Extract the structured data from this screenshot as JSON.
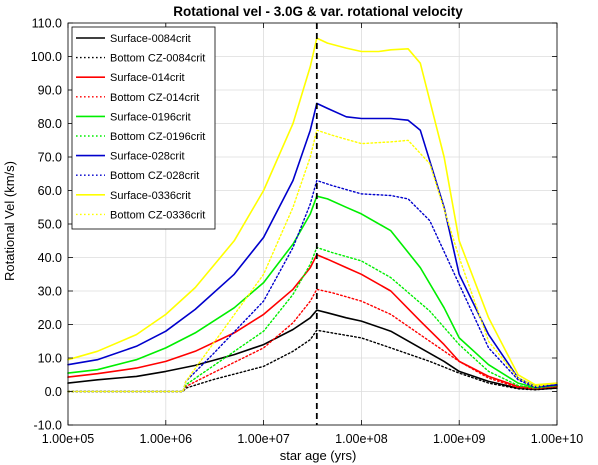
{
  "chart_data": {
    "type": "line",
    "title": "Rotational vel - 3.0G & var. rotational velocity",
    "xlabel": "star age (yrs)",
    "ylabel": "Rotational Vel (km/s)",
    "xscale": "log",
    "xlim": [
      100000,
      10000000000
    ],
    "ylim": [
      -10,
      110
    ],
    "grid": true,
    "legend_position": "top-left",
    "x_tick_labels": [
      "1.00e+05",
      "1.00e+06",
      "1.00e+07",
      "1.00e+08",
      "1.00e+09",
      "1.00e+10"
    ],
    "y_tick_labels": [
      "-10.0",
      "0.0",
      "10.0",
      "20.0",
      "30.0",
      "40.0",
      "50.0",
      "60.0",
      "70.0",
      "80.0",
      "90.0",
      "100.0",
      "110.0"
    ],
    "annotations": [
      {
        "type": "vertical-dashed-line",
        "x": 35000000,
        "color": "#000000"
      }
    ],
    "series": [
      {
        "name": "Surface-0084crit",
        "color": "#000000",
        "style": "solid",
        "x": [
          100000,
          200000,
          500000,
          1000000,
          2000000,
          5000000,
          10000000,
          20000000,
          30000000,
          35000000,
          45000000,
          70000000,
          100000000,
          200000000,
          400000000,
          700000000,
          1000000000,
          2000000000,
          4000000000,
          6000000000,
          10000000000
        ],
        "y": [
          2.5,
          3.5,
          4.5,
          6,
          7.8,
          11,
          14,
          18.5,
          22,
          24.3,
          23.5,
          22,
          21,
          18,
          13,
          9,
          6,
          3,
          1,
          0.6,
          1.0
        ]
      },
      {
        "name": "Bottom CZ-0084crit",
        "color": "#000000",
        "style": "dotted",
        "x": [
          100000,
          1500000,
          1600000,
          3000000,
          10000000,
          20000000,
          30000000,
          35000000,
          50000000,
          100000000,
          200000000,
          500000000,
          1000000000,
          2000000000,
          4000000000,
          6000000000,
          10000000000
        ],
        "y": [
          0,
          0,
          1,
          3.5,
          7.5,
          12,
          15.5,
          18.3,
          17.5,
          16,
          13,
          9,
          5.5,
          2.5,
          0.8,
          0.5,
          1.0
        ]
      },
      {
        "name": "Surface-014crit",
        "color": "#ff0000",
        "style": "solid",
        "x": [
          100000,
          200000,
          500000,
          1000000,
          2000000,
          5000000,
          10000000,
          20000000,
          30000000,
          35000000,
          45000000,
          70000000,
          100000000,
          200000000,
          400000000,
          700000000,
          1000000000,
          2000000000,
          4000000000,
          6000000000,
          10000000000
        ],
        "y": [
          4.3,
          5.3,
          7,
          9,
          12,
          17.5,
          23,
          30.5,
          37,
          40.8,
          39.5,
          37,
          35,
          30,
          21,
          14,
          9,
          4.5,
          1.5,
          1,
          1.5
        ]
      },
      {
        "name": "Bottom CZ-014crit",
        "color": "#ff0000",
        "style": "dotted",
        "x": [
          100000,
          1500000,
          1600000,
          3000000,
          10000000,
          20000000,
          30000000,
          35000000,
          50000000,
          100000000,
          200000000,
          500000000,
          1000000000,
          2000000000,
          4000000000,
          6000000000,
          10000000000
        ],
        "y": [
          0,
          0,
          1.5,
          5.5,
          13,
          20.5,
          27,
          30.5,
          29.5,
          27,
          23,
          15,
          9,
          4,
          1.2,
          0.8,
          1.5
        ]
      },
      {
        "name": "Surface-0196crit",
        "color": "#00ee00",
        "style": "solid",
        "x": [
          100000,
          200000,
          500000,
          1000000,
          2000000,
          5000000,
          10000000,
          20000000,
          30000000,
          35000000,
          45000000,
          70000000,
          100000000,
          200000000,
          400000000,
          700000000,
          1000000000,
          2000000000,
          4000000000,
          6000000000,
          10000000000
        ],
        "y": [
          5.5,
          6.5,
          9.5,
          13,
          17.5,
          25,
          32.5,
          44,
          53,
          58.3,
          57.5,
          55,
          53,
          48,
          37,
          25,
          16,
          8,
          2.5,
          1.2,
          1.8
        ]
      },
      {
        "name": "Bottom CZ-0196crit",
        "color": "#00ee00",
        "style": "dotted",
        "x": [
          100000,
          1500000,
          1600000,
          3000000,
          10000000,
          20000000,
          30000000,
          35000000,
          50000000,
          100000000,
          200000000,
          500000000,
          1000000000,
          2000000000,
          4000000000,
          6000000000,
          10000000000
        ],
        "y": [
          0,
          0,
          2,
          7.5,
          18,
          29,
          38,
          43,
          41.5,
          39,
          34,
          24,
          14,
          6,
          1.8,
          1,
          1.8
        ]
      },
      {
        "name": "Surface-028crit",
        "color": "#0000cc",
        "style": "solid",
        "x": [
          100000,
          200000,
          500000,
          1000000,
          2000000,
          5000000,
          10000000,
          20000000,
          30000000,
          35000000,
          45000000,
          70000000,
          100000000,
          200000000,
          300000000,
          400000000,
          700000000,
          1000000000,
          2000000000,
          4000000000,
          6000000000,
          10000000000
        ],
        "y": [
          8,
          9.5,
          13.5,
          18,
          24.5,
          35,
          46,
          63,
          78,
          86,
          84.5,
          82,
          81.5,
          81.5,
          81,
          78,
          55,
          35,
          17,
          4,
          1.5,
          2
        ]
      },
      {
        "name": "Bottom CZ-028crit",
        "color": "#0000cc",
        "style": "dotted",
        "x": [
          100000,
          1500000,
          1600000,
          3000000,
          10000000,
          20000000,
          30000000,
          35000000,
          50000000,
          100000000,
          200000000,
          300000000,
          500000000,
          1000000000,
          2000000000,
          4000000000,
          6000000000,
          10000000000
        ],
        "y": [
          0,
          0,
          3,
          11,
          27,
          43,
          56,
          63,
          61.5,
          59,
          58.5,
          57.5,
          51,
          32,
          13,
          3.5,
          1.2,
          2
        ]
      },
      {
        "name": "Surface-0336crit",
        "color": "#ffff00",
        "style": "solid",
        "x": [
          100000,
          200000,
          500000,
          1000000,
          2000000,
          5000000,
          10000000,
          20000000,
          30000000,
          35000000,
          45000000,
          70000000,
          100000000,
          150000000,
          200000000,
          300000000,
          400000000,
          700000000,
          1000000000,
          2000000000,
          4000000000,
          6000000000,
          10000000000
        ],
        "y": [
          9.5,
          12,
          17,
          23,
          31,
          45,
          60,
          80,
          97,
          105.5,
          104,
          102.5,
          101.5,
          101.5,
          102,
          102.3,
          98,
          70,
          45,
          22,
          5,
          2,
          2.5
        ]
      },
      {
        "name": "Bottom CZ-0336crit",
        "color": "#ffff00",
        "style": "dotted",
        "x": [
          100000,
          1500000,
          1600000,
          3000000,
          10000000,
          20000000,
          30000000,
          35000000,
          50000000,
          100000000,
          200000000,
          300000000,
          500000000,
          1000000000,
          2000000000,
          4000000000,
          6000000000,
          10000000000
        ],
        "y": [
          0,
          0,
          3,
          14,
          35,
          55,
          70,
          78,
          76.5,
          74,
          74.5,
          75,
          68,
          40,
          15,
          4,
          1.5,
          2.5
        ]
      }
    ]
  }
}
